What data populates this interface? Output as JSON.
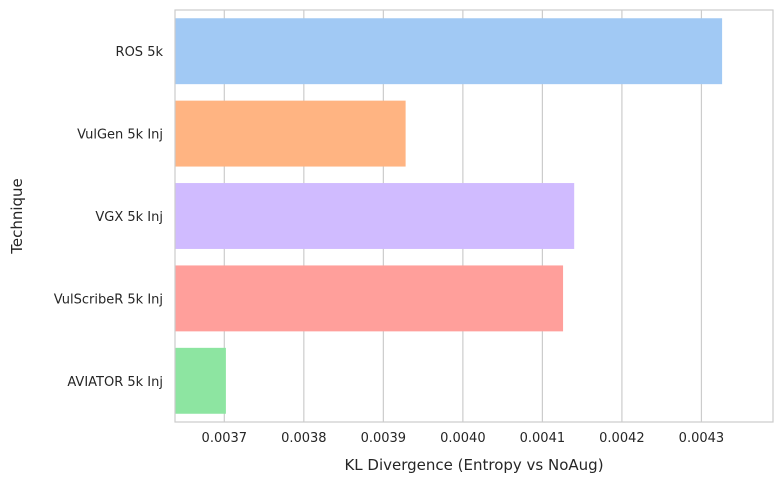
{
  "chart_data": {
    "type": "bar",
    "orientation": "horizontal",
    "title": "",
    "xlabel": "KL Divergence (Entropy vs NoAug)",
    "ylabel": "Technique",
    "categories": [
      "ROS 5k",
      "VulGen 5k Inj",
      "VGX 5k Inj",
      "VulScribeR 5k Inj",
      "AVIATOR 5k Inj"
    ],
    "values": [
      0.004326,
      0.003928,
      0.00414,
      0.004126,
      0.003702
    ],
    "colors": [
      "#a1c9f4",
      "#ffb482",
      "#d0bbff",
      "#ff9f9b",
      "#8de5a1"
    ],
    "xlim": [
      0.003638,
      0.00439
    ],
    "xticks": [
      0.0037,
      0.0038,
      0.0039,
      0.004,
      0.0041,
      0.0042,
      0.0043
    ],
    "xtick_labels": [
      "0.0037",
      "0.0038",
      "0.0039",
      "0.0040",
      "0.0041",
      "0.0042",
      "0.0043"
    ],
    "grid": true,
    "grid_color": "#cccccc"
  }
}
